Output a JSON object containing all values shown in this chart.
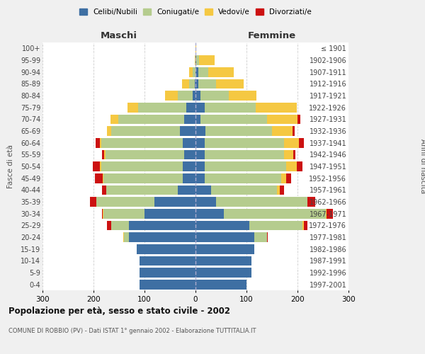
{
  "age_groups": [
    "0-4",
    "5-9",
    "10-14",
    "15-19",
    "20-24",
    "25-29",
    "30-34",
    "35-39",
    "40-44",
    "45-49",
    "50-54",
    "55-59",
    "60-64",
    "65-69",
    "70-74",
    "75-79",
    "80-84",
    "85-89",
    "90-94",
    "95-99",
    "100+"
  ],
  "birth_years": [
    "1997-2001",
    "1992-1996",
    "1987-1991",
    "1982-1986",
    "1977-1981",
    "1972-1976",
    "1967-1971",
    "1962-1966",
    "1957-1961",
    "1952-1956",
    "1947-1951",
    "1942-1946",
    "1937-1941",
    "1932-1936",
    "1927-1931",
    "1922-1926",
    "1917-1921",
    "1912-1916",
    "1907-1911",
    "1902-1906",
    "≤ 1901"
  ],
  "colors": {
    "celibe": "#3e6fa3",
    "coniugato": "#b5cc8e",
    "vedovo": "#f5c842",
    "divorziato": "#cc1111"
  },
  "maschi": {
    "celibe": [
      110,
      110,
      110,
      115,
      130,
      130,
      100,
      80,
      35,
      25,
      25,
      22,
      25,
      30,
      22,
      18,
      5,
      2,
      0,
      0,
      0
    ],
    "coniugato": [
      0,
      0,
      0,
      0,
      10,
      35,
      80,
      115,
      140,
      155,
      160,
      155,
      160,
      135,
      130,
      95,
      30,
      10,
      5,
      0,
      0
    ],
    "vedovo": [
      0,
      0,
      0,
      0,
      2,
      0,
      2,
      0,
      0,
      2,
      2,
      2,
      3,
      8,
      15,
      20,
      25,
      15,
      8,
      2,
      0
    ],
    "divorziato": [
      0,
      0,
      0,
      0,
      0,
      8,
      2,
      12,
      8,
      15,
      15,
      5,
      8,
      0,
      0,
      0,
      0,
      0,
      0,
      0,
      0
    ]
  },
  "femmine": {
    "celibe": [
      100,
      110,
      110,
      115,
      115,
      105,
      55,
      40,
      30,
      18,
      18,
      18,
      18,
      20,
      10,
      18,
      10,
      5,
      5,
      2,
      0
    ],
    "coniugato": [
      0,
      0,
      0,
      0,
      25,
      105,
      200,
      180,
      130,
      150,
      160,
      155,
      155,
      130,
      130,
      100,
      55,
      35,
      20,
      5,
      0
    ],
    "vedovo": [
      0,
      0,
      0,
      0,
      0,
      2,
      2,
      0,
      5,
      10,
      20,
      18,
      30,
      40,
      60,
      80,
      55,
      55,
      50,
      30,
      2
    ],
    "divorziato": [
      0,
      0,
      0,
      0,
      2,
      8,
      12,
      15,
      8,
      10,
      12,
      5,
      10,
      5,
      5,
      0,
      0,
      0,
      0,
      0,
      0
    ]
  },
  "title": "Popolazione per età, sesso e stato civile - 2002",
  "subtitle": "COMUNE DI ROBBIO (PV) - Dati ISTAT 1° gennaio 2002 - Elaborazione TUTTITALIA.IT",
  "xlabel_left": "Maschi",
  "xlabel_right": "Femmine",
  "ylabel_left": "Fasce di età",
  "ylabel_right": "Anni di nascita",
  "xlim": 300,
  "legend_labels": [
    "Celibi/Nubili",
    "Coniugati/e",
    "Vedovi/e",
    "Divorziati/e"
  ],
  "background_color": "#f0f0f0",
  "bar_background": "#ffffff",
  "grid_color": "#cccccc"
}
